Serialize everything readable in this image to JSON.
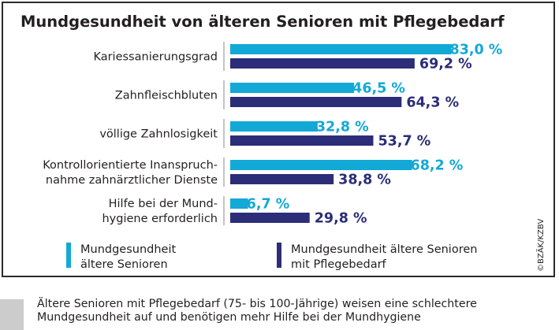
{
  "chart_data": {
    "type": "bar",
    "orientation": "horizontal",
    "title": "Mundgesundheit von älteren Senioren mit Pflegebedarf",
    "categories": [
      [
        "Kariessanierungsgrad"
      ],
      [
        "Zahnfleischbluten"
      ],
      [
        "völlige Zahnlosigkeit"
      ],
      [
        "Kontrollorientierte Inanspruch-",
        "nahme zahnärztlicher Dienste"
      ],
      [
        "Hilfe bei der Mund-",
        "hygiene erforderlich"
      ]
    ],
    "series": [
      {
        "name": "Mundgesundheit\nältere Senioren",
        "color": "#12a9d6",
        "values": [
          83.0,
          46.5,
          32.8,
          68.2,
          6.7
        ],
        "labels": [
          "83,0 %",
          "46,5 %",
          "32,8 %",
          "68,2 %",
          "6,7 %"
        ]
      },
      {
        "name": "Mundgesundheit ältere Senioren\nmit Pflegebedarf",
        "color": "#2b2d78",
        "values": [
          69.2,
          64.3,
          53.7,
          38.8,
          29.8
        ],
        "labels": [
          "69,2 %",
          "64,3 %",
          "53,7 %",
          "38,8 %",
          "29,8 %"
        ]
      }
    ],
    "xlim": [
      0,
      100
    ],
    "grid": false,
    "legend_position": "bottom"
  },
  "copyright": "©BZÄK/KZBV",
  "caption": "Ältere Senioren mit Pflegebedarf (75- bis 100-Jährige) weisen eine schlechtere Mundgesundheit auf und benötigen mehr Hilfe bei der Mundhygiene"
}
